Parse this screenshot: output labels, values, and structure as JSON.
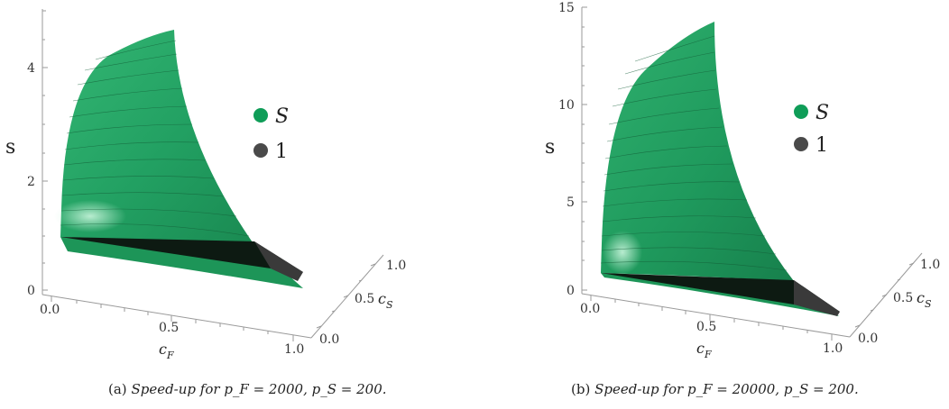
{
  "chart_data": [
    {
      "type": "surface3d",
      "surface_colors": {
        "S": "#1e9a5c",
        "1": "#2b2b2b"
      },
      "x_axis": {
        "label_main": "c",
        "label_sub": "F",
        "ticks": [
          "0.0",
          "0.5",
          "1.0"
        ],
        "range": [
          0,
          1
        ]
      },
      "y_axis": {
        "label_main": "c",
        "label_sub": "S",
        "ticks": [
          "0.0",
          "0.5",
          "1.0"
        ],
        "range": [
          0,
          1
        ]
      },
      "z_axis": {
        "label": "s",
        "ticks": [
          "0",
          "2",
          "4"
        ],
        "range": [
          0,
          4.8
        ]
      },
      "legend": [
        {
          "name": "S",
          "color": "#0f9d58"
        },
        {
          "name": "1",
          "color": "#4a4a4a"
        }
      ],
      "legend_position": "right",
      "caption": {
        "prefix": "(a)",
        "text": "Speed-up for",
        "params": "p_F = 2000, p_S = 200."
      },
      "peak_s": 4.7
    },
    {
      "type": "surface3d",
      "surface_colors": {
        "S": "#1e9a5c",
        "1": "#2b2b2b"
      },
      "x_axis": {
        "label_main": "c",
        "label_sub": "F",
        "ticks": [
          "0.0",
          "0.5",
          "1.0"
        ],
        "range": [
          0,
          1
        ]
      },
      "y_axis": {
        "label_main": "c",
        "label_sub": "S",
        "ticks": [
          "0.0",
          "0.5",
          "1.0"
        ],
        "range": [
          0,
          1
        ]
      },
      "z_axis": {
        "label": "s",
        "ticks": [
          "0",
          "5",
          "10",
          "15"
        ],
        "range": [
          0,
          15
        ]
      },
      "legend": [
        {
          "name": "S",
          "color": "#0f9d58"
        },
        {
          "name": "1",
          "color": "#4a4a4a"
        }
      ],
      "legend_position": "right",
      "caption": {
        "prefix": "(b)",
        "text": "Speed-up for",
        "params": "p_F = 20000, p_S = 200."
      },
      "peak_s": 14.3
    }
  ],
  "captions": {
    "a_prefix": "(a)",
    "a_text": "Speed-up for",
    "a_params": "p_F = 2000, p_S = 200.",
    "b_prefix": "(b)",
    "b_text": "Speed-up for",
    "b_params": "p_F = 20000, p_S = 200."
  }
}
